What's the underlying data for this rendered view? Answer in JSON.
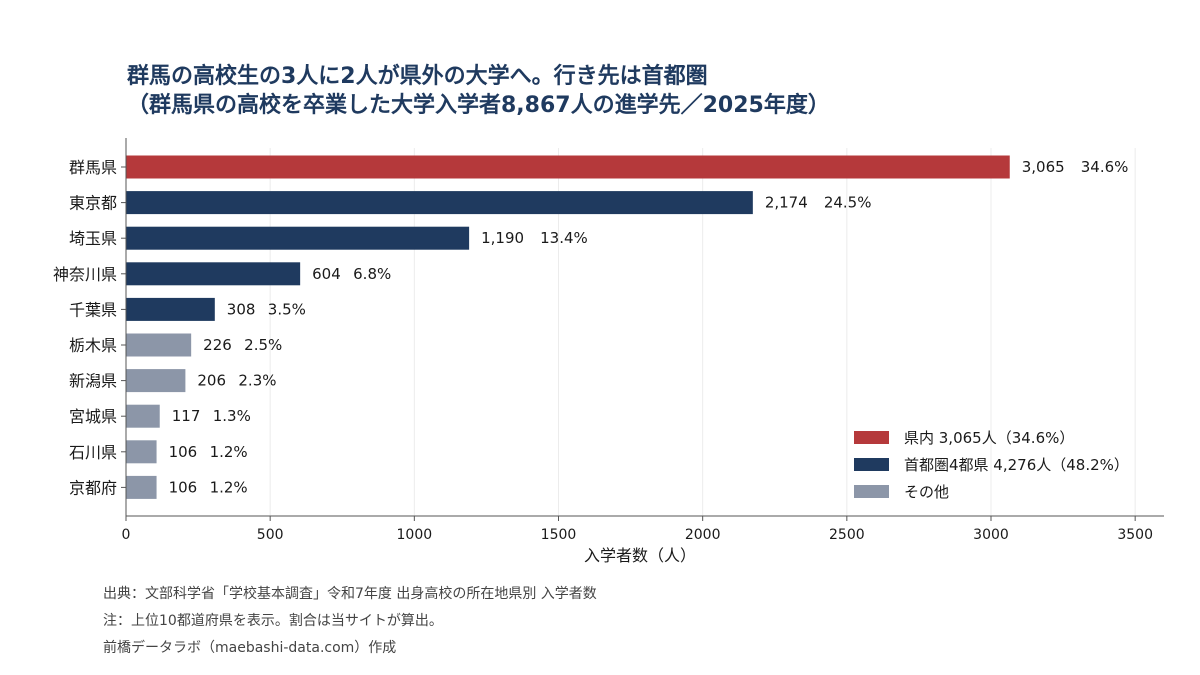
{
  "title": {
    "line1": "群馬の高校生の3人に2人が県外の大学へ。行き先は首都圏",
    "line2": "（群馬県の高校を卒業した大学入学者8,867人の進学先／2025年度）"
  },
  "chart_data": {
    "type": "bar",
    "orientation": "horizontal",
    "categories": [
      "群馬県",
      "東京都",
      "埼玉県",
      "神奈川県",
      "千葉県",
      "栃木県",
      "新潟県",
      "宮城県",
      "石川県",
      "京都府"
    ],
    "values": [
      3065,
      2174,
      1190,
      604,
      308,
      226,
      206,
      117,
      106,
      106
    ],
    "value_labels": [
      "3,065",
      "2,174",
      "1,190",
      "604",
      "308",
      "226",
      "206",
      "117",
      "106",
      "106"
    ],
    "percent_labels": [
      "34.6%",
      "24.5%",
      "13.4%",
      "6.8%",
      "3.5%",
      "2.5%",
      "2.3%",
      "1.3%",
      "1.2%",
      "1.2%"
    ],
    "groups": [
      "in",
      "capital",
      "capital",
      "capital",
      "capital",
      "other",
      "other",
      "other",
      "other",
      "other"
    ],
    "colors": {
      "in": "#b5393b",
      "capital": "#1f3a5f",
      "other": "#8c96a8"
    },
    "xlabel": "入学者数（人）",
    "xlim": [
      0,
      3600
    ],
    "xticks": [
      0,
      500,
      1000,
      1500,
      2000,
      2500,
      3000,
      3500
    ],
    "xtick_labels": [
      "0",
      "500",
      "1000",
      "1500",
      "2000",
      "2500",
      "3000",
      "3500"
    ],
    "grid": "vertical",
    "legend_position": "bottom-right"
  },
  "legend": [
    {
      "key": "in",
      "label": "県内 3,065人（34.6%）"
    },
    {
      "key": "capital",
      "label": "首都圏4都県 4,276人（48.2%）"
    },
    {
      "key": "other",
      "label": "その他"
    }
  ],
  "footer": {
    "source": "出典：文部科学省「学校基本調査」令和7年度 出身高校の所在地県別 入学者数",
    "note": "注：上位10都道府県を表示。割合は当サイトが算出。",
    "credit": "前橋データラボ（maebashi-data.com）作成"
  }
}
